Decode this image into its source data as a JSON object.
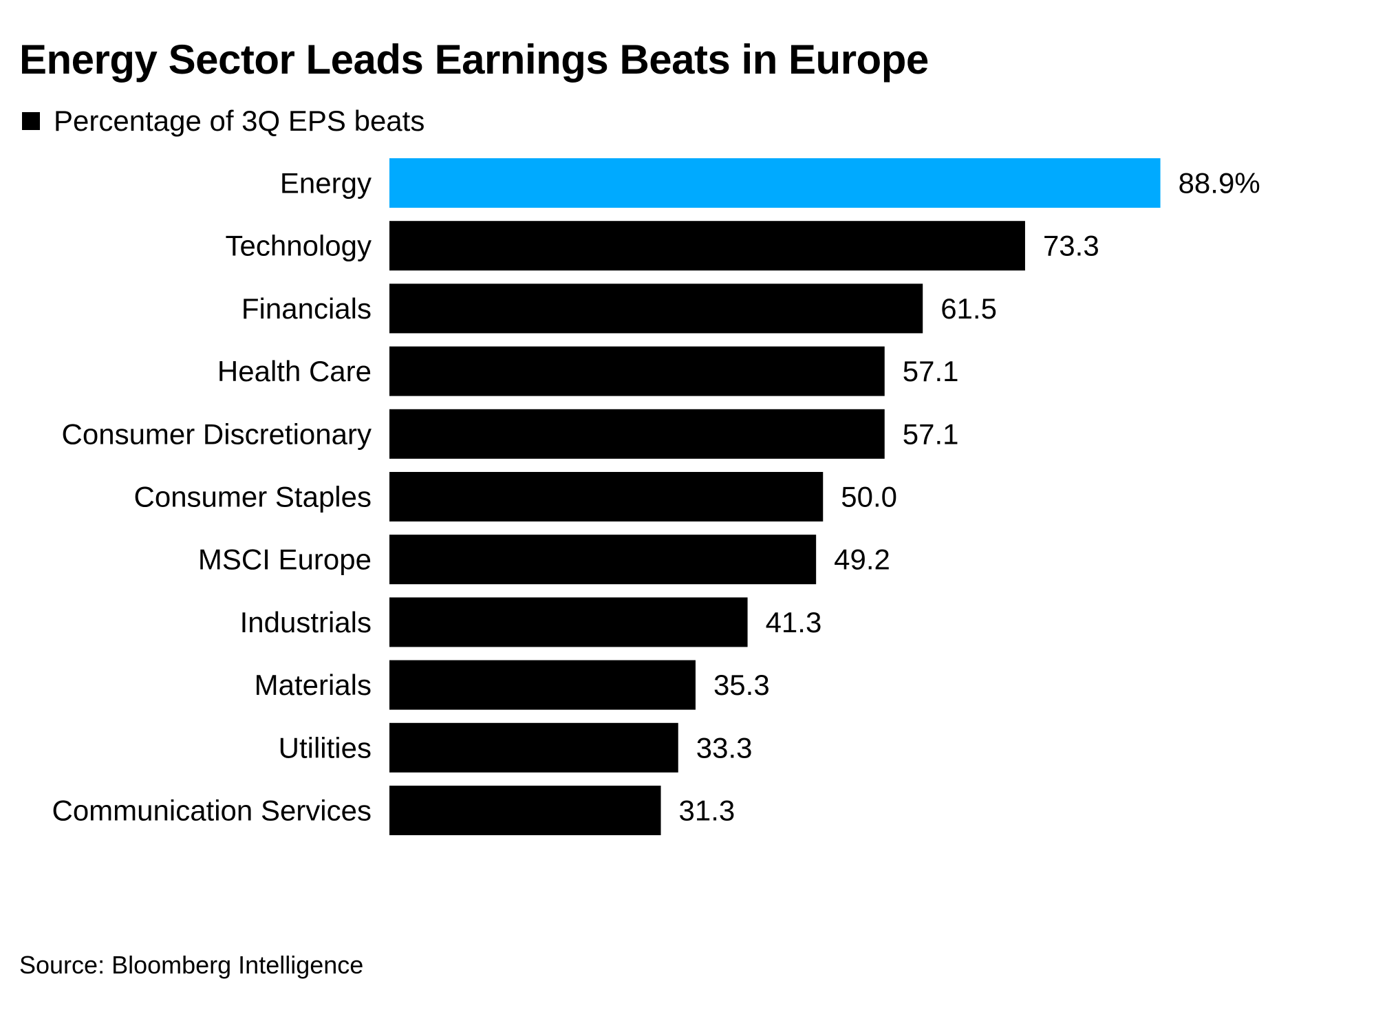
{
  "chart_data": {
    "type": "bar",
    "orientation": "horizontal",
    "title": "Energy Sector Leads Earnings Beats in Europe",
    "legend": {
      "label": "Percentage of 3Q EPS beats",
      "color": "#000000",
      "placement": "top-left"
    },
    "categories": [
      "Energy",
      "Technology",
      "Financials",
      "Health Care",
      "Consumer Discretionary",
      "Consumer Staples",
      "MSCI Europe",
      "Industrials",
      "Materials",
      "Utilities",
      "Communication Services"
    ],
    "values": [
      88.9,
      73.3,
      61.5,
      57.1,
      57.1,
      50.0,
      49.2,
      41.3,
      35.3,
      33.3,
      31.3
    ],
    "value_labels": [
      "88.9%",
      "73.3",
      "61.5",
      "57.1",
      "57.1",
      "50.0",
      "49.2",
      "41.3",
      "35.3",
      "33.3",
      "31.3"
    ],
    "highlight_index": 0,
    "colors": {
      "default": "#000000",
      "highlight": "#00aaff"
    },
    "xlim": [
      0,
      100
    ],
    "xlabel": "",
    "ylabel": "",
    "grid": false,
    "source": "Source: Bloomberg Intelligence"
  }
}
